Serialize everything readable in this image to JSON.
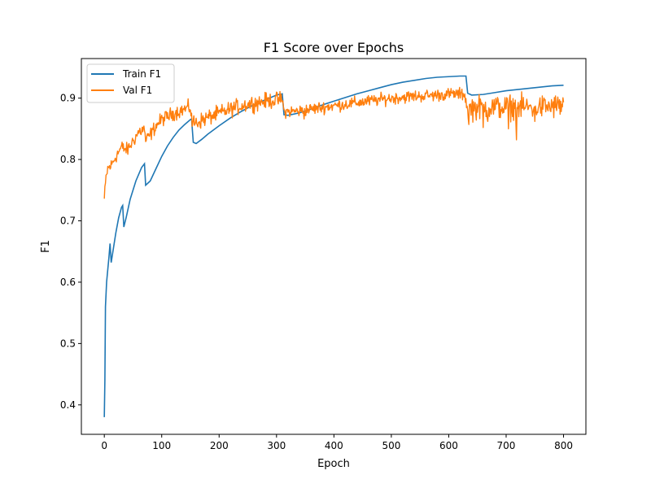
{
  "chart_data": {
    "type": "line",
    "title": "F1 Score over Epochs",
    "xlabel": "Epoch",
    "ylabel": "F1",
    "xlim": [
      -39.95,
      838.95
    ],
    "ylim": [
      0.352,
      0.9645
    ],
    "xticks": [
      0,
      100,
      200,
      300,
      400,
      500,
      600,
      700,
      800
    ],
    "yticks": [
      0.4,
      0.5,
      0.6,
      0.7,
      0.8,
      0.9
    ],
    "xtick_labels": [
      "0",
      "100",
      "200",
      "300",
      "400",
      "500",
      "600",
      "700",
      "800"
    ],
    "ytick_labels": [
      "0.4",
      "0.5",
      "0.6",
      "0.7",
      "0.8",
      "0.9"
    ],
    "grid": false,
    "legend_position": "upper left",
    "series": [
      {
        "name": "Train F1",
        "color": "#1f77b4",
        "points": [
          [
            0,
            0.38
          ],
          [
            1,
            0.44
          ],
          [
            2,
            0.56
          ],
          [
            4,
            0.6
          ],
          [
            6,
            0.62
          ],
          [
            8,
            0.64
          ],
          [
            10,
            0.663
          ],
          [
            12,
            0.632
          ],
          [
            15,
            0.65
          ],
          [
            20,
            0.68
          ],
          [
            25,
            0.705
          ],
          [
            30,
            0.722
          ],
          [
            32,
            0.725
          ],
          [
            34,
            0.69
          ],
          [
            38,
            0.705
          ],
          [
            45,
            0.735
          ],
          [
            55,
            0.765
          ],
          [
            65,
            0.787
          ],
          [
            70,
            0.793
          ],
          [
            72,
            0.758
          ],
          [
            80,
            0.765
          ],
          [
            90,
            0.785
          ],
          [
            100,
            0.805
          ],
          [
            110,
            0.822
          ],
          [
            120,
            0.836
          ],
          [
            130,
            0.848
          ],
          [
            140,
            0.857
          ],
          [
            150,
            0.865
          ],
          [
            152,
            0.866
          ],
          [
            155,
            0.828
          ],
          [
            160,
            0.826
          ],
          [
            170,
            0.833
          ],
          [
            180,
            0.841
          ],
          [
            200,
            0.855
          ],
          [
            220,
            0.868
          ],
          [
            240,
            0.879
          ],
          [
            260,
            0.889
          ],
          [
            280,
            0.897
          ],
          [
            300,
            0.905
          ],
          [
            310,
            0.907
          ],
          [
            313,
            0.873
          ],
          [
            320,
            0.872
          ],
          [
            340,
            0.876
          ],
          [
            360,
            0.882
          ],
          [
            380,
            0.889
          ],
          [
            400,
            0.895
          ],
          [
            420,
            0.901
          ],
          [
            440,
            0.907
          ],
          [
            460,
            0.912
          ],
          [
            480,
            0.917
          ],
          [
            500,
            0.922
          ],
          [
            520,
            0.926
          ],
          [
            540,
            0.929
          ],
          [
            560,
            0.932
          ],
          [
            580,
            0.934
          ],
          [
            600,
            0.935
          ],
          [
            620,
            0.936
          ],
          [
            630,
            0.936
          ],
          [
            633,
            0.908
          ],
          [
            640,
            0.905
          ],
          [
            660,
            0.906
          ],
          [
            680,
            0.909
          ],
          [
            700,
            0.912
          ],
          [
            720,
            0.914
          ],
          [
            740,
            0.916
          ],
          [
            760,
            0.918
          ],
          [
            780,
            0.92
          ],
          [
            800,
            0.921
          ]
        ]
      },
      {
        "name": "Val F1",
        "color": "#ff7f0e",
        "anchors": [
          [
            0,
            0.735
          ],
          [
            3,
            0.77
          ],
          [
            6,
            0.785
          ],
          [
            12,
            0.79
          ],
          [
            20,
            0.805
          ],
          [
            30,
            0.82
          ],
          [
            40,
            0.815
          ],
          [
            50,
            0.83
          ],
          [
            60,
            0.845
          ],
          [
            70,
            0.85
          ],
          [
            72,
            0.83
          ],
          [
            80,
            0.84
          ],
          [
            90,
            0.855
          ],
          [
            100,
            0.865
          ],
          [
            120,
            0.875
          ],
          [
            140,
            0.882
          ],
          [
            150,
            0.885
          ],
          [
            153,
            0.86
          ],
          [
            160,
            0.86
          ],
          [
            180,
            0.868
          ],
          [
            200,
            0.875
          ],
          [
            220,
            0.882
          ],
          [
            240,
            0.888
          ],
          [
            260,
            0.892
          ],
          [
            280,
            0.895
          ],
          [
            300,
            0.897
          ],
          [
            310,
            0.898
          ],
          [
            313,
            0.878
          ],
          [
            340,
            0.879
          ],
          [
            380,
            0.885
          ],
          [
            420,
            0.89
          ],
          [
            460,
            0.895
          ],
          [
            500,
            0.9
          ],
          [
            540,
            0.903
          ],
          [
            580,
            0.905
          ],
          [
            610,
            0.907
          ],
          [
            628,
            0.906
          ],
          [
            632,
            0.884
          ],
          [
            660,
            0.885
          ],
          [
            700,
            0.885
          ],
          [
            740,
            0.885
          ],
          [
            780,
            0.886
          ],
          [
            800,
            0.888
          ]
        ],
        "noise": [
          [
            0,
            150,
            0.008
          ],
          [
            150,
            310,
            0.009
          ],
          [
            310,
            630,
            0.007
          ],
          [
            630,
            800,
            0.014
          ]
        ],
        "spikes": [
          [
            718,
            0.832
          ],
          [
            704,
            0.85
          ],
          [
            635,
            0.857
          ],
          [
            660,
            0.852
          ],
          [
            348,
            0.866
          ],
          [
            750,
            0.862
          ],
          [
            668,
            0.862
          ]
        ]
      }
    ]
  }
}
